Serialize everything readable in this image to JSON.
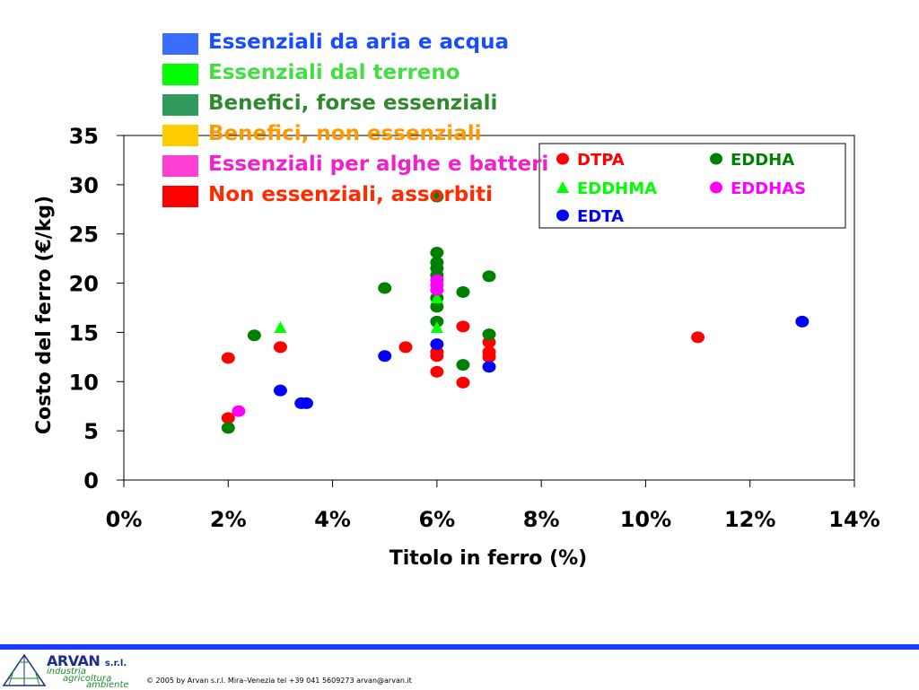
{
  "category_legend": [
    {
      "label": "Essenziali da aria e acqua",
      "color": "#3a6cff",
      "text_color": "#1a4cff"
    },
    {
      "label": "Essenziali dal terreno",
      "color": "#00ff00",
      "text_color": "#44dd44"
    },
    {
      "label": "Benefici, forse essenziali",
      "color": "#2f9a5c",
      "text_color": "#2f8a2f"
    },
    {
      "label": "Benefici, non essenziali",
      "color": "#ffcc00",
      "text_color": "#ff9900"
    },
    {
      "label": "Essenziali per alghe e batteri",
      "color": "#ff3fd4",
      "text_color": "#ee22cc"
    },
    {
      "label": "Non essenziali, assorbiti",
      "color": "#ff0000",
      "text_color": "#ff2a00"
    }
  ],
  "chart_data": {
    "type": "scatter",
    "title": "",
    "xlabel": "Titolo in ferro (%)",
    "ylabel": "Costo del ferro (€/kg)",
    "xlim": [
      0,
      14
    ],
    "ylim": [
      0,
      35
    ],
    "x_ticks": [
      0,
      2,
      4,
      6,
      8,
      10,
      12,
      14
    ],
    "x_tick_labels": [
      "0%",
      "2%",
      "4%",
      "6%",
      "8%",
      "10%",
      "12%",
      "14%"
    ],
    "y_ticks": [
      0,
      5,
      10,
      15,
      20,
      25,
      30,
      35
    ],
    "y_tick_labels": [
      "0",
      "5",
      "10",
      "15",
      "20",
      "25",
      "30",
      "35"
    ],
    "grid": false,
    "legend_placement": "top-right",
    "series": [
      {
        "name": "DTPA",
        "color": "#ff0000",
        "marker": "circle",
        "points": [
          [
            2,
            12.4
          ],
          [
            2,
            6.3
          ],
          [
            3,
            13.5
          ],
          [
            5.4,
            13.5
          ],
          [
            6,
            12.6
          ],
          [
            6,
            13
          ],
          [
            6,
            11
          ],
          [
            6.5,
            15.6
          ],
          [
            6.5,
            9.9
          ],
          [
            7,
            14
          ],
          [
            7,
            13
          ],
          [
            7,
            12.5
          ],
          [
            11,
            14.5
          ]
        ]
      },
      {
        "name": "EDDHA",
        "color": "#008000",
        "marker": "circle",
        "points": [
          [
            2,
            5.3
          ],
          [
            2.5,
            14.7
          ],
          [
            5,
            19.5
          ],
          [
            6,
            23.1
          ],
          [
            6,
            22.1
          ],
          [
            6,
            21.5
          ],
          [
            6,
            20.8
          ],
          [
            6,
            18.5
          ],
          [
            6,
            17.6
          ],
          [
            6,
            16.1
          ],
          [
            6,
            28.8
          ],
          [
            6.5,
            19.1
          ],
          [
            6.5,
            11.7
          ],
          [
            7,
            20.7
          ],
          [
            7,
            14.8
          ]
        ]
      },
      {
        "name": "EDDHMA",
        "color": "#00ff00",
        "marker": "triangle",
        "points": [
          [
            3,
            15.5
          ],
          [
            6,
            18.5
          ],
          [
            6,
            15.5
          ]
        ]
      },
      {
        "name": "EDDHAS",
        "color": "#ff00ff",
        "marker": "circle",
        "points": [
          [
            2.2,
            7
          ],
          [
            6,
            20.3
          ],
          [
            6,
            19.8
          ],
          [
            6,
            19.3
          ]
        ]
      },
      {
        "name": "EDTA",
        "color": "#0000ff",
        "marker": "circle",
        "points": [
          [
            3,
            9.1
          ],
          [
            3.4,
            7.8
          ],
          [
            3.5,
            7.8
          ],
          [
            5,
            12.6
          ],
          [
            6,
            13.8
          ],
          [
            7,
            11.5
          ],
          [
            13,
            16.1
          ]
        ]
      }
    ]
  },
  "footer": {
    "brand_name": "ARVAN",
    "brand_suffix": "s.r.l.",
    "tagline_1": "industria",
    "tagline_2": "agricoltura",
    "tagline_3": "ambiente",
    "copyright": "© 2005 by Arvan s.r.l. Mira–Venezia tel +39 041 5609273 arvan@arvan.it",
    "bar_color": "#1e3cff"
  }
}
